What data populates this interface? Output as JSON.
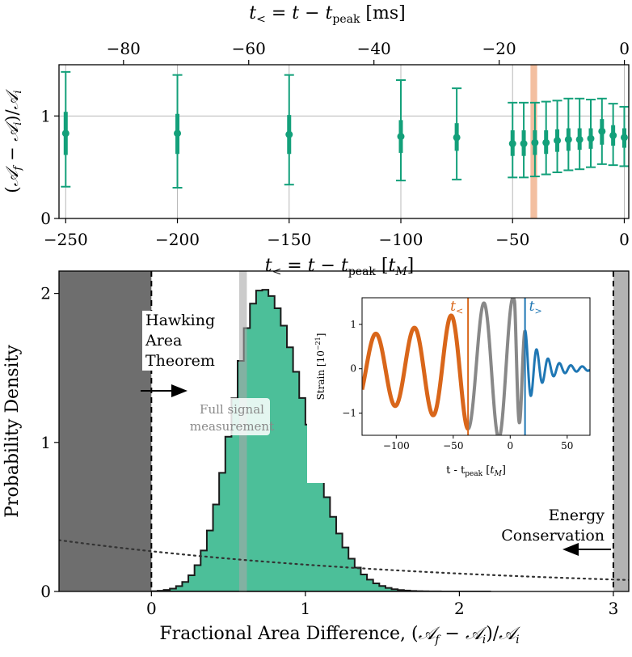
{
  "chart_data": [
    {
      "type": "scatter",
      "top_xlabel": "t_< = t − t_peak [ms]",
      "xlabel": "t_< = t − t_peak [t_M]",
      "ylabel": "(𝒜_f − 𝒜_i)/𝒜_i",
      "xlim": [
        -253,
        2
      ],
      "ylim": [
        0,
        1.5
      ],
      "top_xlim": [
        -90.3,
        0.7
      ],
      "xticks": [
        "−250",
        "−200",
        "−150",
        "−100",
        "−50",
        "0"
      ],
      "yticks": [
        "0",
        "1"
      ],
      "top_xticks": [
        "−80",
        "−60",
        "−40",
        "−20",
        "0"
      ],
      "x": [
        -250,
        -200,
        -150,
        -100,
        -75,
        -50,
        -45,
        -40,
        -35,
        -30,
        -25,
        -20,
        -15,
        -10,
        -5,
        0
      ],
      "median": [
        0.83,
        0.83,
        0.82,
        0.8,
        0.79,
        0.73,
        0.73,
        0.74,
        0.74,
        0.76,
        0.77,
        0.77,
        0.78,
        0.85,
        0.81,
        0.79
      ],
      "err_lower_90": [
        0.31,
        0.3,
        0.33,
        0.37,
        0.38,
        0.4,
        0.4,
        0.41,
        0.43,
        0.45,
        0.47,
        0.48,
        0.5,
        0.53,
        0.52,
        0.51
      ],
      "err_upper_90": [
        1.43,
        1.4,
        1.4,
        1.35,
        1.27,
        1.13,
        1.13,
        1.13,
        1.14,
        1.15,
        1.17,
        1.17,
        1.16,
        1.17,
        1.12,
        1.09
      ],
      "err_lower_50": [
        0.62,
        0.63,
        0.63,
        0.64,
        0.66,
        0.61,
        0.61,
        0.62,
        0.63,
        0.65,
        0.66,
        0.67,
        0.68,
        0.72,
        0.71,
        0.69
      ],
      "err_upper_50": [
        1.04,
        1.02,
        1.01,
        0.96,
        0.93,
        0.86,
        0.86,
        0.86,
        0.86,
        0.87,
        0.88,
        0.88,
        0.88,
        0.97,
        0.91,
        0.88
      ],
      "hline": 1,
      "highlight_band": [
        -42,
        -39
      ],
      "color": "#13a07a"
    },
    {
      "type": "area",
      "xlabel": "Fractional Area Difference,  (𝒜_f − 𝒜_i)/𝒜_i",
      "ylabel": "Probability Density",
      "xlim": [
        -0.6,
        3.1
      ],
      "ylim": [
        0,
        2.15
      ],
      "xticks": [
        "0",
        "1",
        "2",
        "3"
      ],
      "yticks": [
        "0",
        "1",
        "2"
      ],
      "histogram": {
        "mean": 0.72,
        "std_left": 0.19,
        "std_right": 0.275,
        "peak": 2.03,
        "bin_width": 0.04,
        "range": [
          0.0,
          2.2
        ]
      },
      "prior_dotted": {
        "at_0": 0.27,
        "at_3": 0.08,
        "at_neg06": 0.4
      },
      "excluded_left": [
        -0.6,
        0
      ],
      "excluded_right": [
        3,
        3.1
      ],
      "full_signal_band": [
        0.57,
        0.62
      ],
      "annotations": {
        "hawking": [
          "Hawking",
          "Area",
          "Theorem"
        ],
        "energy": [
          "Energy",
          "Conservation"
        ],
        "full_signal": [
          "Full signal",
          "measurement"
        ]
      },
      "colors": {
        "fill": "#4cbf99",
        "edge": "#1a1a1a",
        "excluded": "#6e6e6e",
        "band": "#a8a8a8"
      }
    },
    {
      "type": "line",
      "xlabel": "t - t_peak [t_M]",
      "ylabel": "Strain [10⁻²¹]",
      "xlim": [
        -130,
        70
      ],
      "ylim": [
        -1.5,
        1.6
      ],
      "xticks": [
        "−100",
        "−50",
        "0",
        "50"
      ],
      "yticks": [
        "−1",
        "0",
        "1"
      ],
      "cut_lo": -37,
      "cut_hi": 13,
      "labels": {
        "lo": "t_<",
        "hi": "t_>"
      },
      "colors": {
        "lo": "#d9661a",
        "mid": "#888888",
        "hi": "#1f77b4"
      }
    }
  ]
}
